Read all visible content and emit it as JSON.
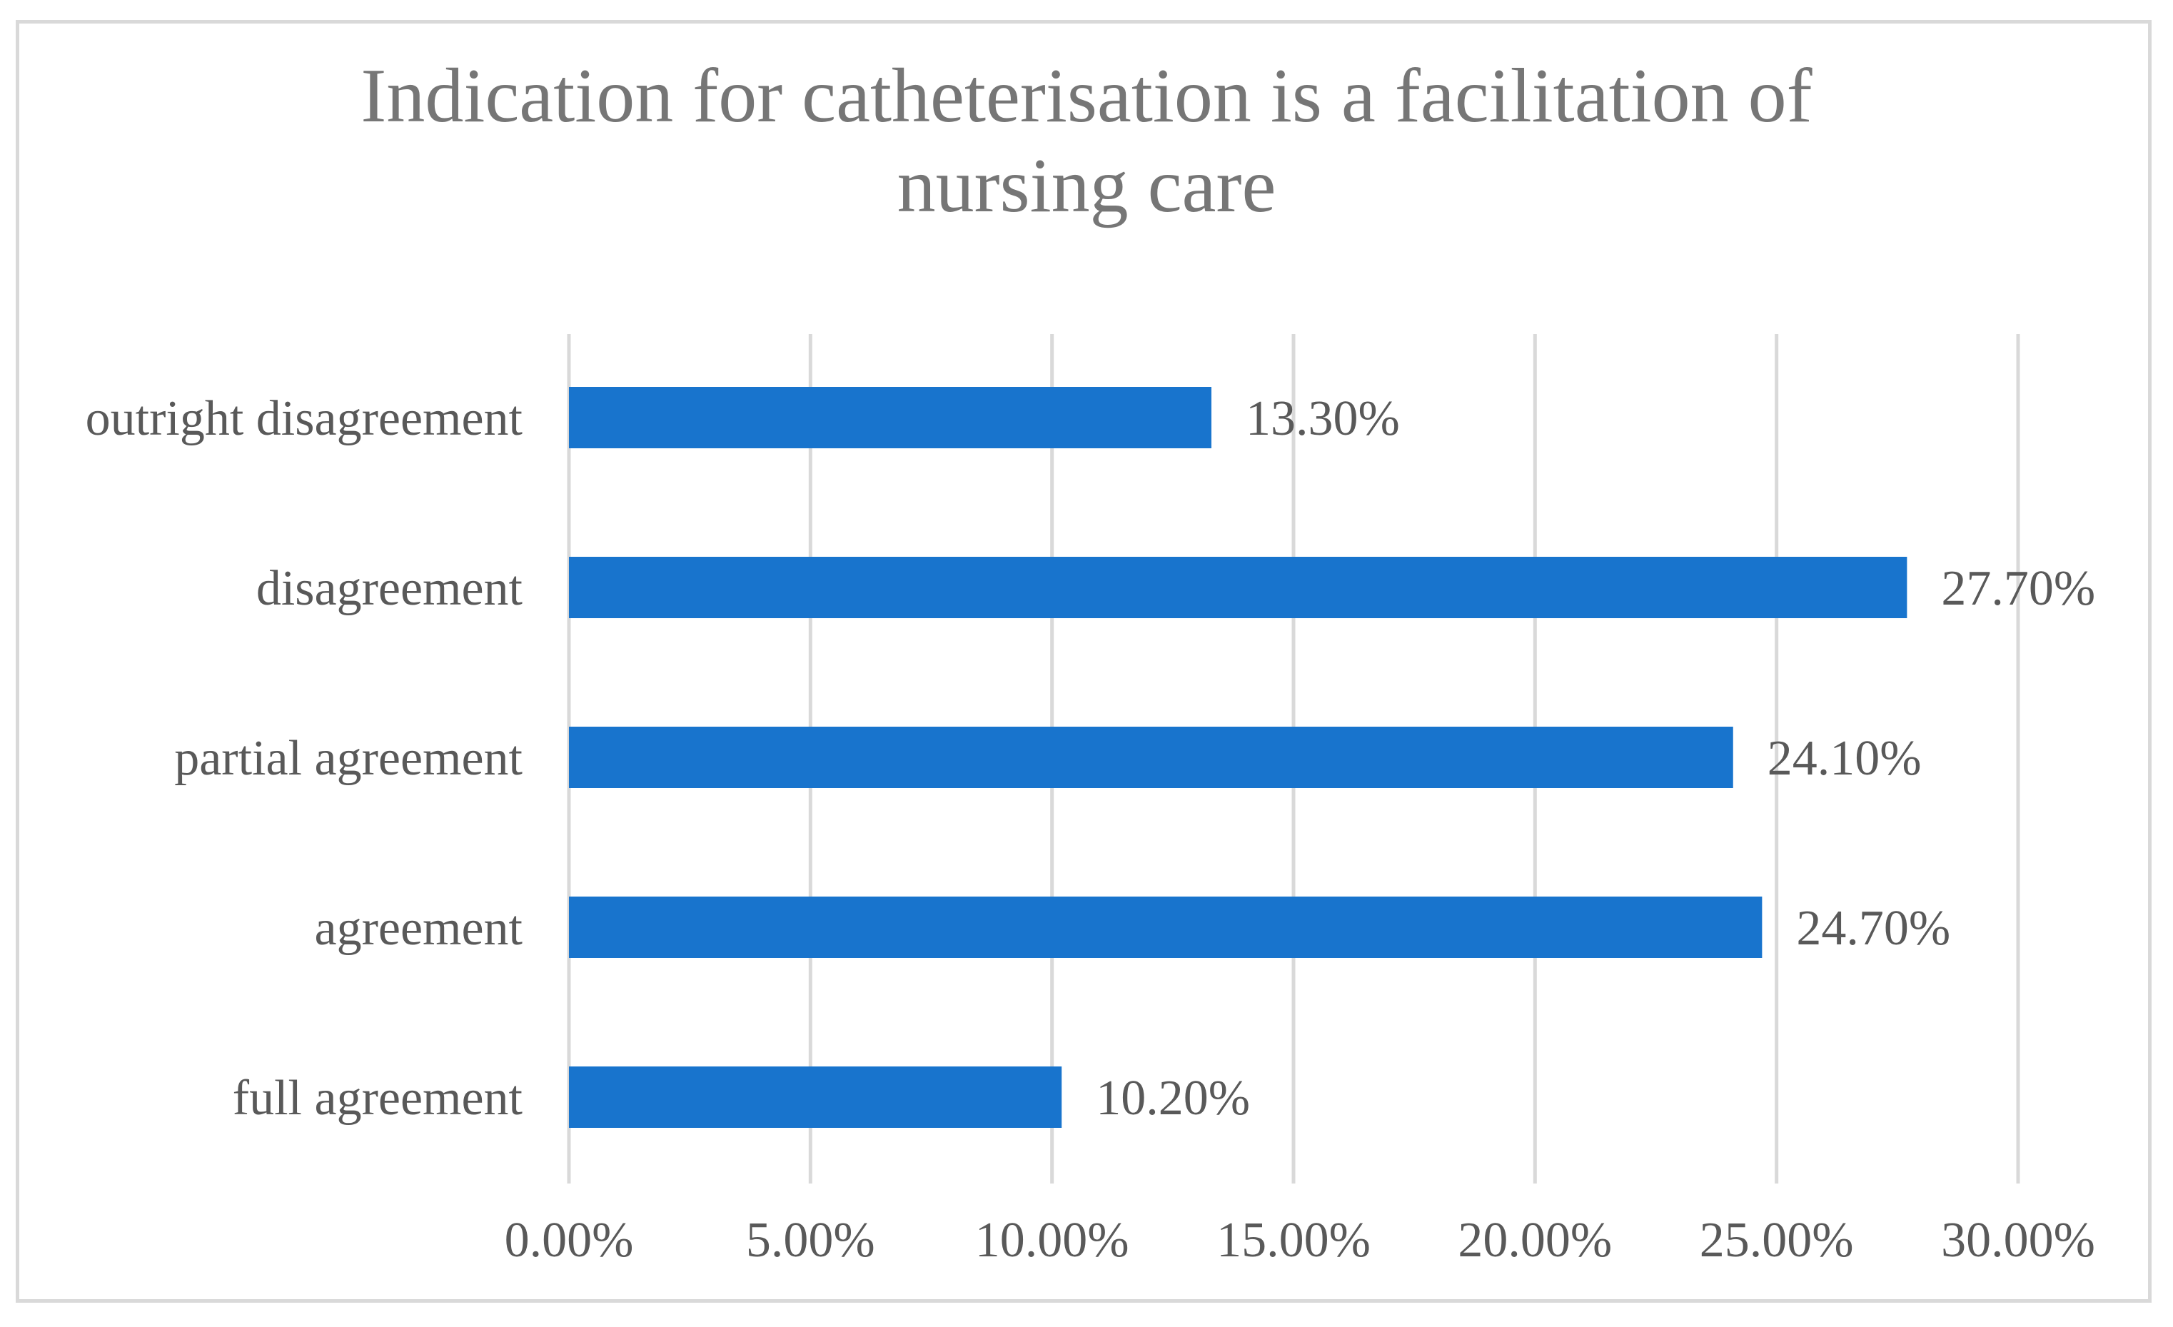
{
  "chart_data": {
    "type": "bar",
    "orientation": "horizontal",
    "title": "Indication for catheterisation is a facilitation of\nnursing care",
    "categories": [
      "outright disagreement",
      "disagreement",
      "partial agreement",
      "agreement",
      "full agreement"
    ],
    "values": [
      13.3,
      27.7,
      24.1,
      24.7,
      10.2
    ],
    "value_labels": [
      "13.30%",
      "27.70%",
      "24.10%",
      "24.70%",
      "10.20%"
    ],
    "xlim": [
      0,
      30
    ],
    "x_ticks": [
      0,
      5,
      10,
      15,
      20,
      25,
      30
    ],
    "x_tick_labels": [
      "0.00%",
      "5.00%",
      "10.00%",
      "15.00%",
      "20.00%",
      "25.00%",
      "30.00%"
    ],
    "xlabel": "",
    "ylabel": "",
    "grid": "vertical",
    "legend": "none",
    "colors": {
      "bar": "#1874CD",
      "grid": "#d9d9d9",
      "text": "#595959",
      "title": "#767676",
      "frame": "#d9d9d9"
    }
  }
}
